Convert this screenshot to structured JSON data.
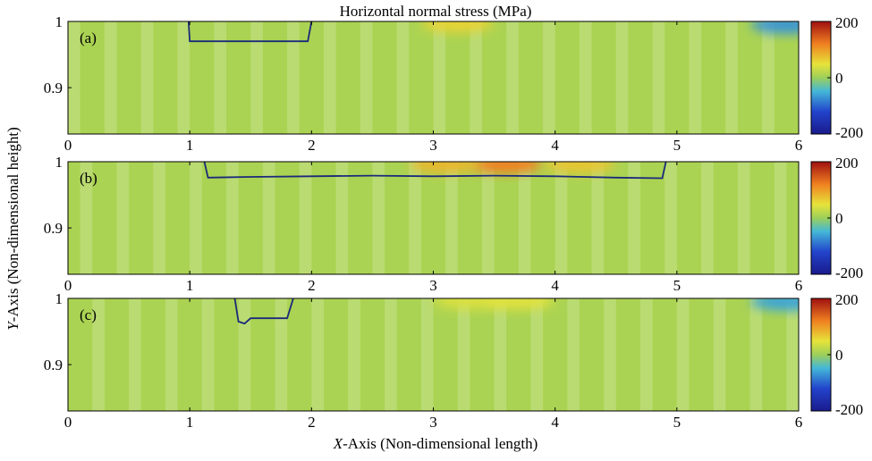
{
  "chart_data": {
    "type": "heatmap",
    "title": "Horizontal normal stress (MPa)",
    "xlabel_italic": "X",
    "xlabel_rest": "-Axis (Non-dimensional length)",
    "ylabel_italic": "Y",
    "ylabel_rest": "-Axis (Non-dimensional height)",
    "xlim": [
      0,
      6
    ],
    "ylim": [
      0.83,
      1.0
    ],
    "xticks": [
      "0",
      "1",
      "2",
      "3",
      "4",
      "5",
      "6"
    ],
    "yticks": [
      {
        "value": 1.0,
        "label": "1"
      },
      {
        "value": 0.9,
        "label": "0.9"
      }
    ],
    "colorbar": {
      "min": -200,
      "max": 200,
      "ticks": [
        "200",
        "0",
        "-200"
      ]
    },
    "background_value": 10,
    "panels": [
      {
        "label": "(a)",
        "contour": [
          [
            0.99,
            1.0
          ],
          [
            1.0,
            0.97
          ],
          [
            1.97,
            0.97
          ],
          [
            2.0,
            1.0
          ]
        ],
        "hotspots": [
          {
            "x": 3.2,
            "y": 0.997,
            "value": 60
          },
          {
            "x": 5.9,
            "y": 0.995,
            "value": -70
          }
        ]
      },
      {
        "label": "(b)",
        "contour": [
          [
            1.12,
            1.0
          ],
          [
            1.15,
            0.976
          ],
          [
            1.5,
            0.977
          ],
          [
            2.0,
            0.978
          ],
          [
            2.5,
            0.979
          ],
          [
            3.0,
            0.978
          ],
          [
            3.5,
            0.979
          ],
          [
            4.0,
            0.978
          ],
          [
            4.5,
            0.976
          ],
          [
            4.88,
            0.975
          ],
          [
            4.91,
            1.0
          ]
        ],
        "hotspots": [
          {
            "x": 3.6,
            "y": 0.996,
            "value": 120
          },
          {
            "x": 3.1,
            "y": 0.996,
            "value": 80
          },
          {
            "x": 4.2,
            "y": 0.996,
            "value": 70
          }
        ]
      },
      {
        "label": "(c)",
        "contour": [
          [
            1.37,
            1.0
          ],
          [
            1.4,
            0.965
          ],
          [
            1.45,
            0.962
          ],
          [
            1.5,
            0.97
          ],
          [
            1.8,
            0.97
          ],
          [
            1.85,
            1.0
          ]
        ],
        "hotspots": [
          {
            "x": 3.3,
            "y": 0.997,
            "value": 40
          },
          {
            "x": 3.7,
            "y": 0.997,
            "value": 45
          },
          {
            "x": 5.9,
            "y": 0.995,
            "value": -60
          }
        ]
      }
    ]
  }
}
